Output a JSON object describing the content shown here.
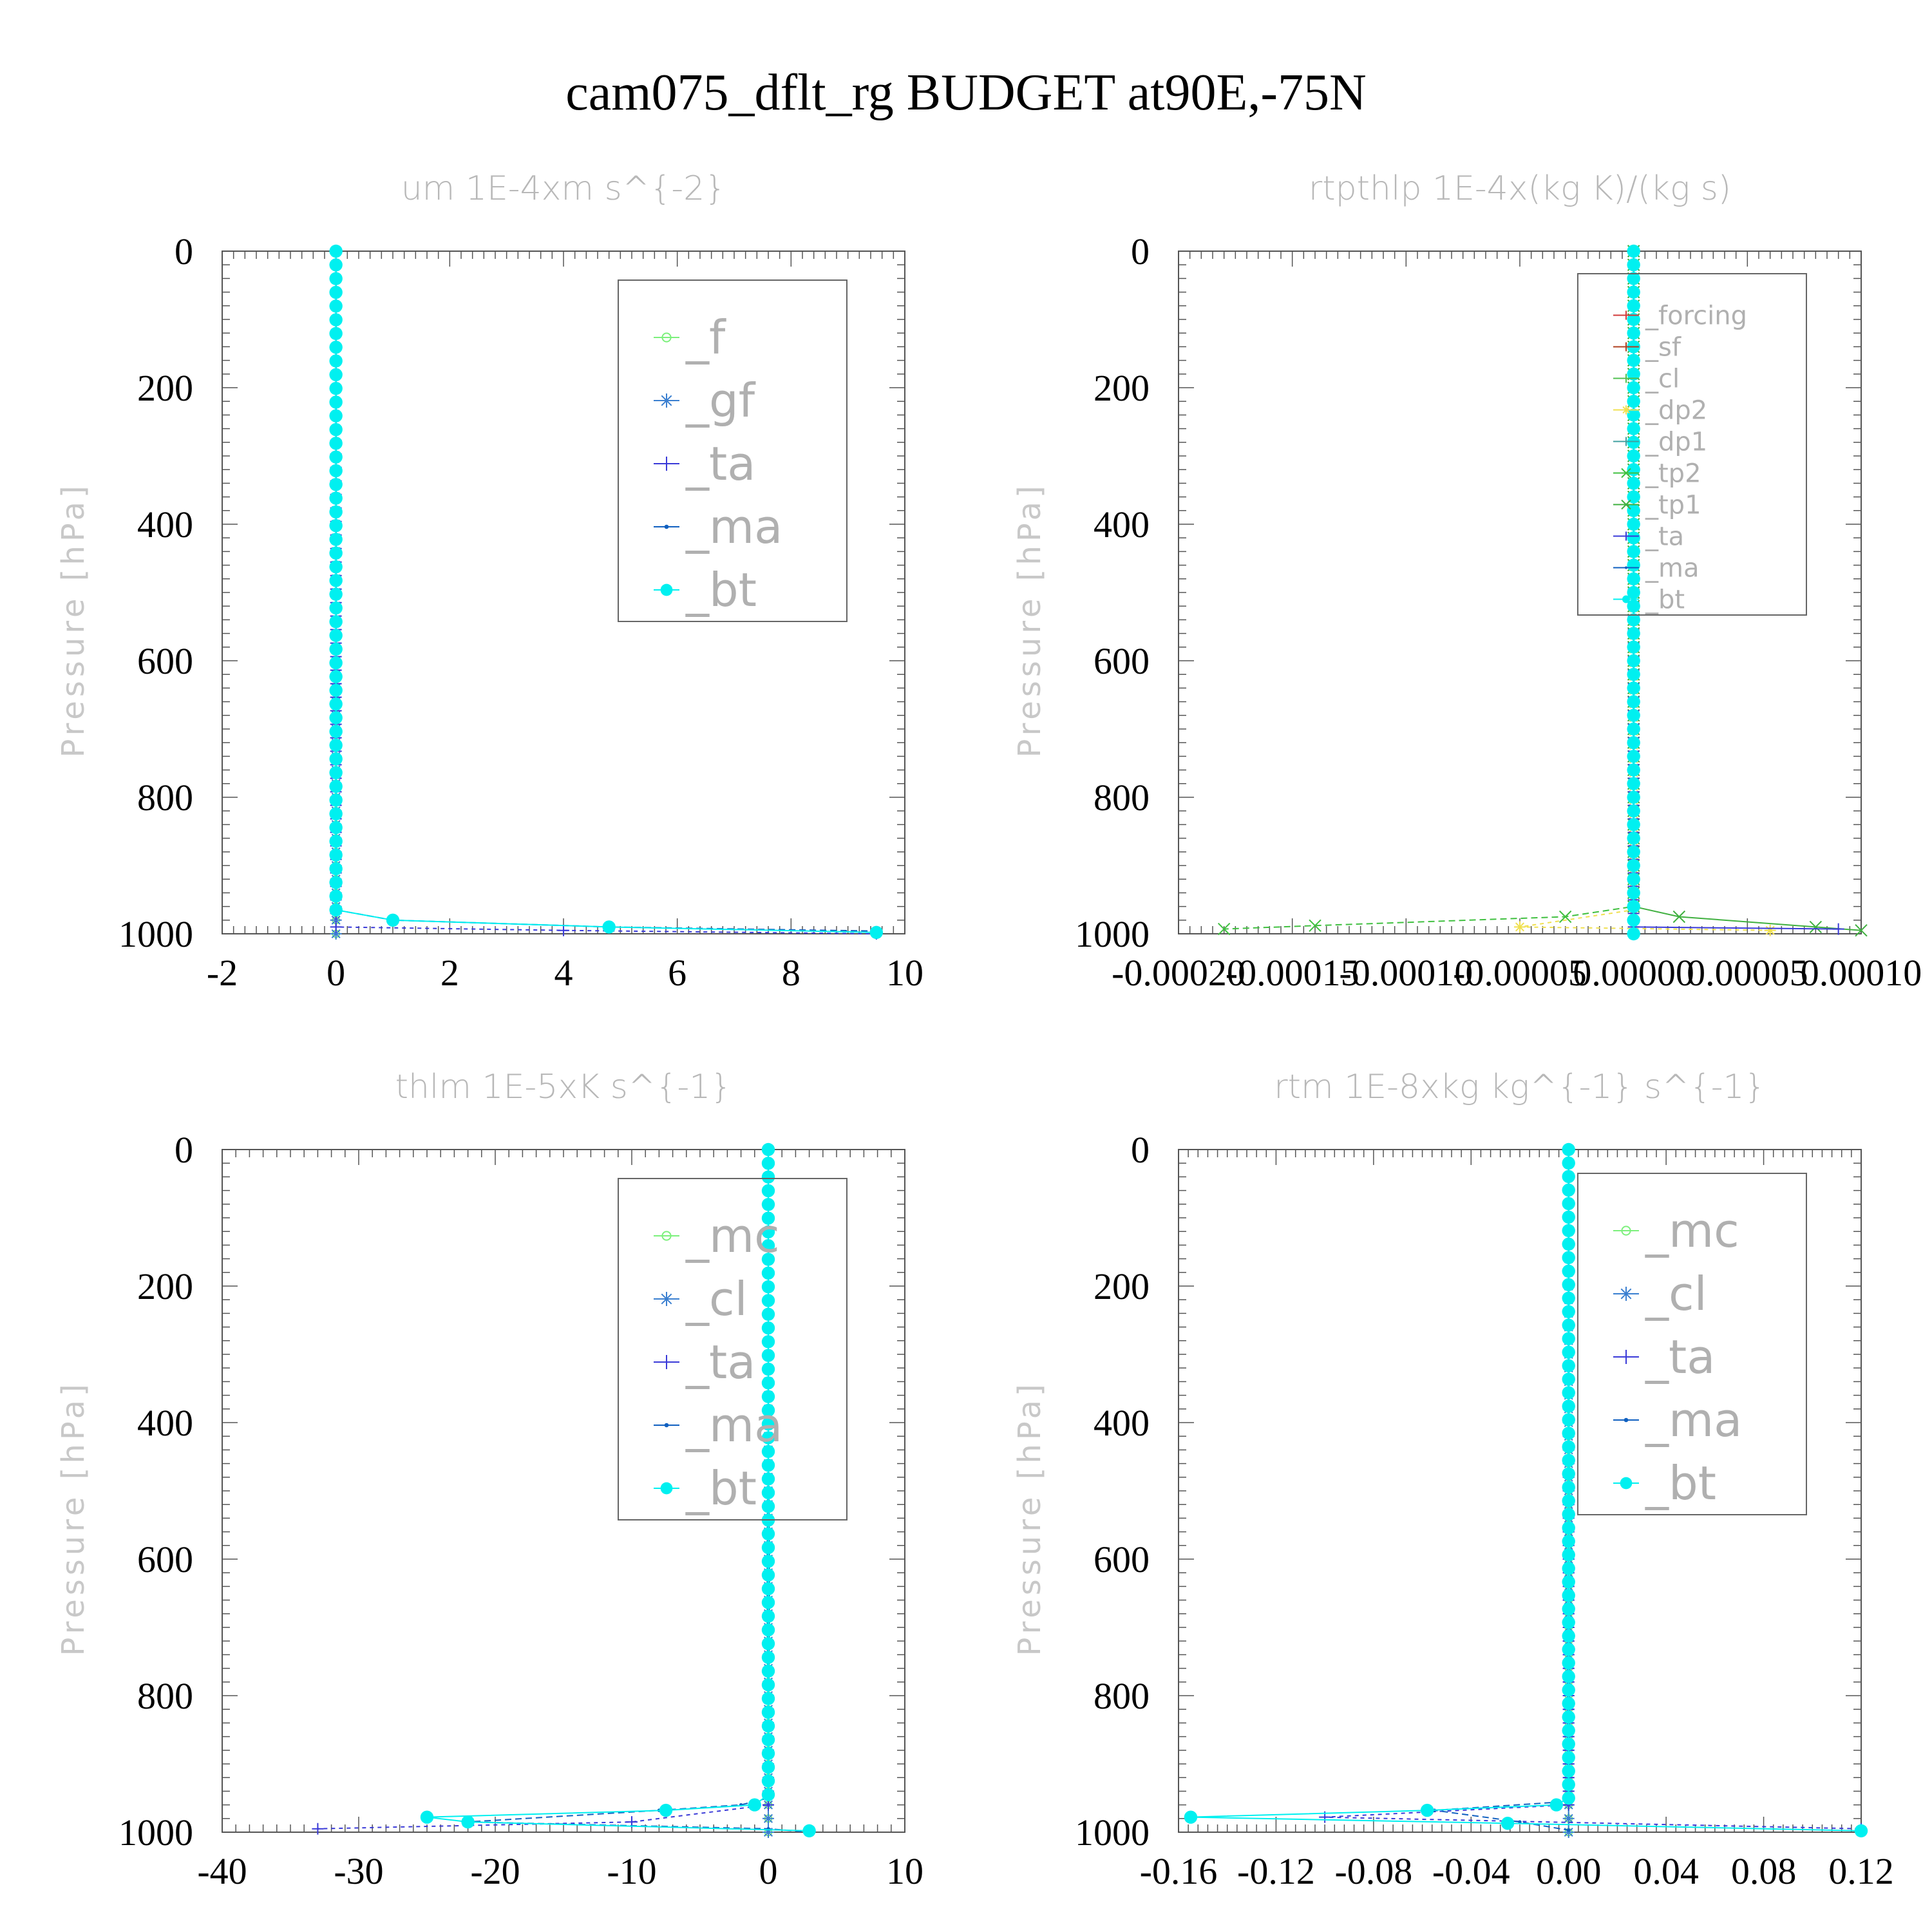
{
  "figure": {
    "title": "cam075_dflt_rg  BUDGET at90E,-75N"
  },
  "chart_data": [
    {
      "type": "line",
      "title": "um   1E-4xm s^{-2}",
      "ylabel": "Pressure [hPa]",
      "xlim": [
        -2,
        10
      ],
      "ylim": [
        1000,
        0
      ],
      "xticks": [
        "-2",
        "0",
        "2",
        "4",
        "6",
        "8",
        "10"
      ],
      "yticks": [
        "0",
        "200",
        "400",
        "600",
        "800",
        "1000"
      ],
      "legend_placement": "upper-right",
      "legend_font": 72,
      "series": [
        {
          "name": "_f",
          "color": "#7cf07c",
          "marker": "circle",
          "dash": "",
          "points": [
            [
              0,
              0
            ],
            [
              0,
              1000
            ]
          ]
        },
        {
          "name": "_gf",
          "color": "#3a7fd0",
          "marker": "star",
          "dash": "",
          "points": [
            [
              0,
              0
            ],
            [
              0,
              1000
            ]
          ]
        },
        {
          "name": "_ta",
          "color": "#3a3ad8",
          "marker": "plus",
          "dash": "6,6",
          "points": [
            [
              0,
              0
            ],
            [
              0,
              990
            ],
            [
              4,
              995
            ],
            [
              9.5,
              1000
            ]
          ]
        },
        {
          "name": "_ma",
          "color": "#1060c0",
          "marker": "dot",
          "dash": "10,6",
          "points": [
            [
              0,
              0
            ],
            [
              0,
              965
            ],
            [
              1,
              980
            ],
            [
              4.8,
              990
            ],
            [
              9.5,
              996
            ]
          ]
        },
        {
          "name": "_bt",
          "color": "#00f0f0",
          "marker": "bigdot",
          "dash": "",
          "points": [
            [
              0,
              0
            ],
            [
              0,
              965
            ],
            [
              1,
              980
            ],
            [
              4.8,
              990
            ],
            [
              9.5,
              998
            ]
          ]
        }
      ]
    },
    {
      "type": "line",
      "title": "rtpthlp   1E-4x(kg K)/(kg s)",
      "ylabel": "Pressure [hPa]",
      "xlim": [
        -0.0002,
        0.0001
      ],
      "ylim": [
        1000,
        0
      ],
      "xticks": [
        "-0.00020",
        "-0.00015",
        "-0.00010",
        "-0.00005",
        "0.00000",
        "0.00005",
        "0.00010"
      ],
      "yticks": [
        "0",
        "200",
        "400",
        "600",
        "800",
        "1000"
      ],
      "legend_placement": "upper-right",
      "legend_font": 40,
      "series": [
        {
          "name": "_forcing",
          "color": "#d23a3a",
          "marker": "plus",
          "dash": "",
          "points": [
            [
              0,
              0
            ],
            [
              0,
              1000
            ]
          ]
        },
        {
          "name": "_sf",
          "color": "#b04020",
          "marker": "plus",
          "dash": "",
          "points": [
            [
              0,
              0
            ],
            [
              0,
              1000
            ]
          ]
        },
        {
          "name": "_cl",
          "color": "#50c050",
          "marker": "plus",
          "dash": "",
          "points": [
            [
              0,
              0
            ],
            [
              0,
              1000
            ]
          ]
        },
        {
          "name": "_dp2",
          "color": "#f0e050",
          "marker": "star",
          "dash": "6,6",
          "points": [
            [
              0,
              0
            ],
            [
              0,
              965
            ],
            [
              -5e-05,
              990
            ],
            [
              6e-05,
              995
            ]
          ]
        },
        {
          "name": "_dp1",
          "color": "#40a0a0",
          "marker": "plus",
          "dash": "",
          "points": [
            [
              0,
              0
            ],
            [
              0,
              1000
            ]
          ]
        },
        {
          "name": "_tp2",
          "color": "#40c040",
          "marker": "cross",
          "dash": "10,6",
          "points": [
            [
              0,
              0
            ],
            [
              0,
              960
            ],
            [
              -3e-05,
              975
            ],
            [
              -0.00014,
              988
            ],
            [
              -0.00018,
              993
            ]
          ]
        },
        {
          "name": "_tp1",
          "color": "#40b040",
          "marker": "cross",
          "dash": "",
          "points": [
            [
              0,
              0
            ],
            [
              0,
              960
            ],
            [
              2e-05,
              975
            ],
            [
              8e-05,
              990
            ],
            [
              0.0001,
              995
            ]
          ]
        },
        {
          "name": "_ta",
          "color": "#3a3ad8",
          "marker": "plus",
          "dash": "",
          "points": [
            [
              0,
              0
            ],
            [
              0,
              990
            ],
            [
              9e-05,
              993
            ]
          ]
        },
        {
          "name": "_ma",
          "color": "#1060c0",
          "marker": "dot",
          "dash": "",
          "points": [
            [
              0,
              0
            ],
            [
              0,
              1000
            ]
          ]
        },
        {
          "name": "_bt",
          "color": "#00f0f0",
          "marker": "bigdot",
          "dash": "",
          "points": [
            [
              0,
              0
            ],
            [
              0,
              1000
            ]
          ]
        }
      ]
    },
    {
      "type": "line",
      "title": "thlm   1E-5xK s^{-1}",
      "ylabel": "Pressure [hPa]",
      "xlim": [
        -40,
        10
      ],
      "ylim": [
        1000,
        0
      ],
      "xticks": [
        "-40",
        "-30",
        "-20",
        "-10",
        "0",
        "10"
      ],
      "yticks": [
        "0",
        "200",
        "400",
        "600",
        "800",
        "1000"
      ],
      "legend_placement": "upper-right",
      "legend_font": 72,
      "series": [
        {
          "name": "_mc",
          "color": "#7cf07c",
          "marker": "circle",
          "dash": "",
          "points": [
            [
              0,
              0
            ],
            [
              0,
              1000
            ]
          ]
        },
        {
          "name": "_cl",
          "color": "#3a7fd0",
          "marker": "star",
          "dash": "",
          "points": [
            [
              0,
              0
            ],
            [
              0,
              1000
            ]
          ]
        },
        {
          "name": "_ta",
          "color": "#3a3ad8",
          "marker": "plus",
          "dash": "6,6",
          "points": [
            [
              0,
              0
            ],
            [
              0,
              960
            ],
            [
              -10,
              985
            ],
            [
              -33,
              995
            ]
          ]
        },
        {
          "name": "_ma",
          "color": "#1060c0",
          "marker": "dot",
          "dash": "10,6",
          "points": [
            [
              0,
              0
            ],
            [
              0,
              950
            ],
            [
              -2,
              960
            ],
            [
              -8,
              968
            ],
            [
              -22,
              985
            ],
            [
              0,
              995
            ],
            [
              3,
              1000
            ]
          ]
        },
        {
          "name": "_bt",
          "color": "#00f0f0",
          "marker": "bigdot",
          "dash": "",
          "points": [
            [
              0,
              0
            ],
            [
              0,
              945
            ],
            [
              -1,
              960
            ],
            [
              -7.5,
              968
            ],
            [
              -25,
              978
            ],
            [
              -22,
              985
            ],
            [
              3,
              998
            ]
          ]
        }
      ]
    },
    {
      "type": "line",
      "title": "rtm   1E-8xkg kg^{-1} s^{-1}",
      "ylabel": "Pressure [hPa]",
      "xlim": [
        -0.16,
        0.12
      ],
      "ylim": [
        1000,
        0
      ],
      "xticks": [
        "-0.16",
        "-0.12",
        "-0.08",
        "-0.04",
        "0.00",
        "0.04",
        "0.08",
        "0.12"
      ],
      "yticks": [
        "0",
        "200",
        "400",
        "600",
        "800",
        "1000"
      ],
      "legend_placement": "upper-right",
      "legend_font": 72,
      "series": [
        {
          "name": "_mc",
          "color": "#7cf07c",
          "marker": "circle",
          "dash": "",
          "points": [
            [
              0,
              0
            ],
            [
              0,
              1000
            ]
          ]
        },
        {
          "name": "_cl",
          "color": "#3a7fd0",
          "marker": "star",
          "dash": "",
          "points": [
            [
              0,
              0
            ],
            [
              0,
              1000
            ]
          ]
        },
        {
          "name": "_ta",
          "color": "#3a3ad8",
          "marker": "plus",
          "dash": "6,6",
          "points": [
            [
              0,
              0
            ],
            [
              0,
              960
            ],
            [
              -0.1,
              978
            ],
            [
              0.12,
              995
            ]
          ]
        },
        {
          "name": "_ma",
          "color": "#1060c0",
          "marker": "dot",
          "dash": "10,6",
          "points": [
            [
              0,
              0
            ],
            [
              0,
              955
            ],
            [
              -0.055,
              968
            ],
            [
              -0.02,
              985
            ],
            [
              0,
              997
            ]
          ]
        },
        {
          "name": "_bt",
          "color": "#00f0f0",
          "marker": "bigdot",
          "dash": "",
          "points": [
            [
              0,
              0
            ],
            [
              0,
              950
            ],
            [
              -0.005,
              960
            ],
            [
              -0.058,
              968
            ],
            [
              -0.155,
              978
            ],
            [
              -0.025,
              987
            ],
            [
              0.12,
              998
            ]
          ]
        }
      ]
    }
  ]
}
